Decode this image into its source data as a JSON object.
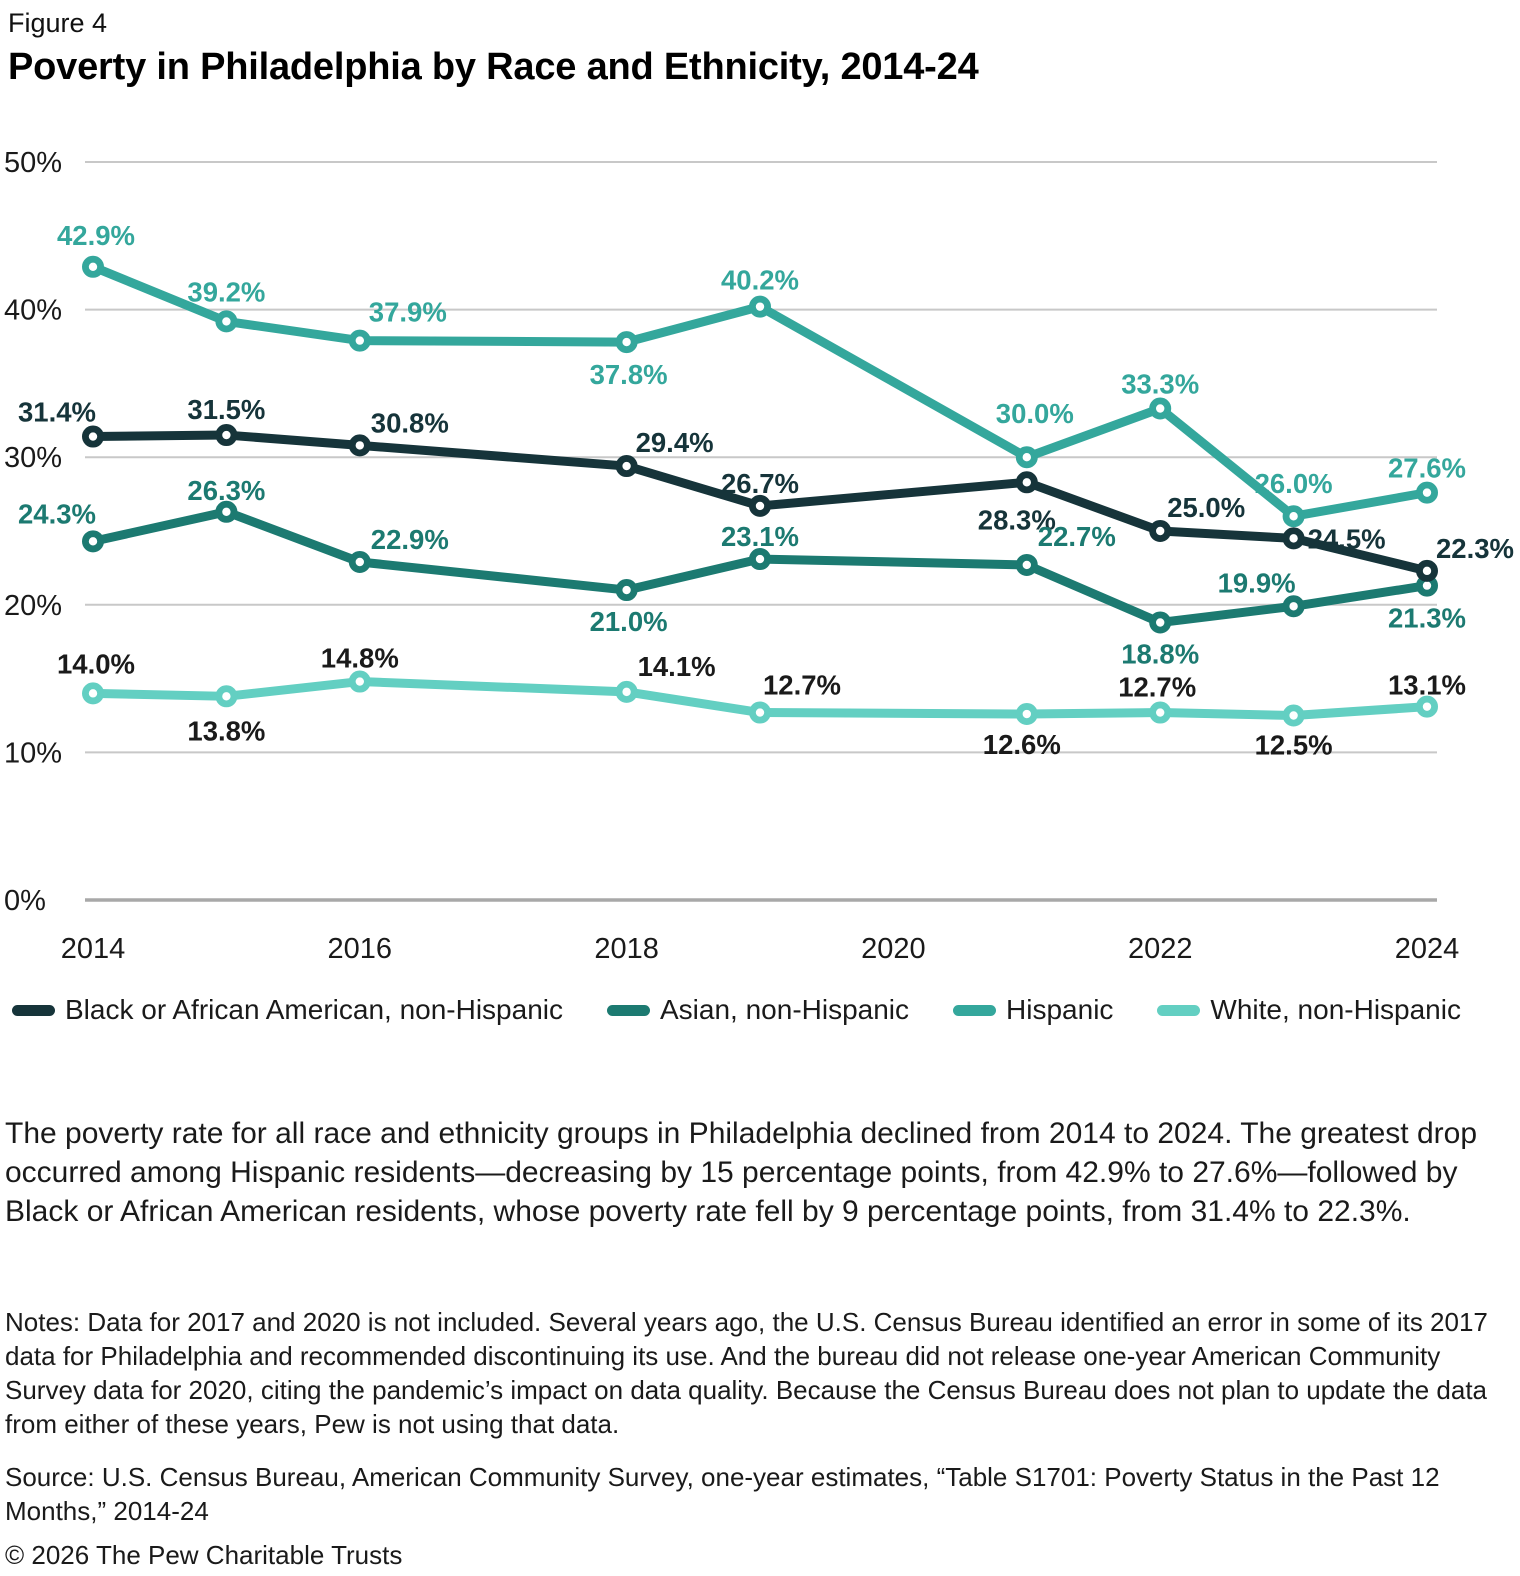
{
  "figure_label": "Figure 4",
  "title": "Poverty in Philadelphia by Race and Ethnicity, 2014-24",
  "chart_data": {
    "type": "line",
    "x": [
      2014,
      2015,
      2016,
      2018,
      2019,
      2021,
      2022,
      2023,
      2024
    ],
    "x_axis": {
      "ticks": [
        2014,
        2016,
        2018,
        2020,
        2022,
        2024
      ]
    },
    "y_axis": {
      "ticks": [
        0,
        10,
        20,
        30,
        40,
        50
      ],
      "min": 0,
      "max": 50,
      "unit": "%"
    },
    "grid": true,
    "legend_position": "bottom",
    "colors": {
      "grid_line": "#c8c8c8",
      "zero_line": "#a8a8a8",
      "tick_text": "#1a1a1a",
      "marker_fill": "#ffffff"
    },
    "series": [
      {
        "id": "black",
        "name": "Black or African American, non-Hispanic",
        "color": "#16343a",
        "label_color": "#16343a",
        "values": [
          31.4,
          31.5,
          30.8,
          29.4,
          26.7,
          28.3,
          25.0,
          24.5,
          22.3
        ],
        "label_dx": [
          -36,
          0,
          50,
          48,
          0,
          -10,
          46,
          14,
          48
        ],
        "label_dy": [
          -15,
          -16,
          -13,
          -14,
          -13,
          47,
          -14,
          10,
          -13
        ],
        "label_anchor": [
          "middle",
          "middle",
          "middle",
          "middle",
          "middle",
          "middle",
          "middle",
          "start",
          "middle"
        ]
      },
      {
        "id": "asian",
        "name": "Asian, non-Hispanic",
        "color": "#1c7a71",
        "label_color": "#1c7a71",
        "values": [
          24.3,
          26.3,
          22.9,
          21.0,
          23.1,
          22.7,
          18.8,
          19.9,
          21.3
        ],
        "label_dx": [
          -36,
          0,
          50,
          2,
          0,
          50,
          0,
          -37,
          0
        ],
        "label_dy": [
          -18,
          -12,
          -13,
          41,
          -13,
          -19,
          41,
          -14,
          42
        ],
        "label_anchor": [
          "middle",
          "middle",
          "middle",
          "middle",
          "middle",
          "middle",
          "middle",
          "middle",
          "middle"
        ]
      },
      {
        "id": "hispanic",
        "name": "Hispanic",
        "color": "#34a79c",
        "label_color": "#34a79c",
        "values": [
          42.9,
          39.2,
          37.9,
          37.8,
          40.2,
          30.0,
          33.3,
          26.0,
          27.6
        ],
        "label_dx": [
          3,
          0,
          48,
          2,
          0,
          8,
          0,
          0,
          0
        ],
        "label_dy": [
          -22,
          -20,
          -19,
          42,
          -17,
          -34,
          -15,
          -23,
          -15
        ],
        "label_anchor": [
          "middle",
          "middle",
          "middle",
          "middle",
          "middle",
          "middle",
          "middle",
          "middle",
          "middle"
        ]
      },
      {
        "id": "white",
        "name": "White, non-Hispanic",
        "color": "#63cfc2",
        "label_color": "#1a1a1a",
        "values": [
          14.0,
          13.8,
          14.8,
          14.1,
          12.7,
          12.6,
          12.7,
          12.5,
          13.1
        ],
        "label_dx": [
          3,
          0,
          0,
          50,
          42,
          -5,
          -3,
          0,
          0
        ],
        "label_dy": [
          -20,
          44,
          -14,
          -16,
          -18,
          40,
          -16,
          39,
          -12
        ],
        "label_anchor": [
          "middle",
          "middle",
          "middle",
          "middle",
          "middle",
          "middle",
          "middle",
          "middle",
          "middle"
        ]
      }
    ]
  },
  "caption": "The poverty rate for all race and ethnicity groups in Philadelphia declined from 2014 to 2024. The greatest drop occurred among Hispanic residents—decreasing by 15 percentage points, from 42.9% to 27.6%—followed by Black or African American residents, whose poverty rate fell by 9 percentage points, from 31.4% to 22.3%.",
  "notes": "Notes: Data for 2017 and 2020 is not included. Several years ago, the U.S. Census Bureau identified an error in some of its 2017 data for Philadelphia and recommended discontinuing its use. And the bureau did not release one-year American Community Survey data for 2020, citing the pandemic’s impact on data quality. Because the Census Bureau does not plan to update the data from either of these years, Pew is not using that data.",
  "source": "Source: U.S. Census Bureau, American Community Survey, one-year estimates, “Table S1701: Poverty Status in the Past 12 Months,” 2014-24",
  "copyright": "© 2026 The Pew Charitable Trusts"
}
